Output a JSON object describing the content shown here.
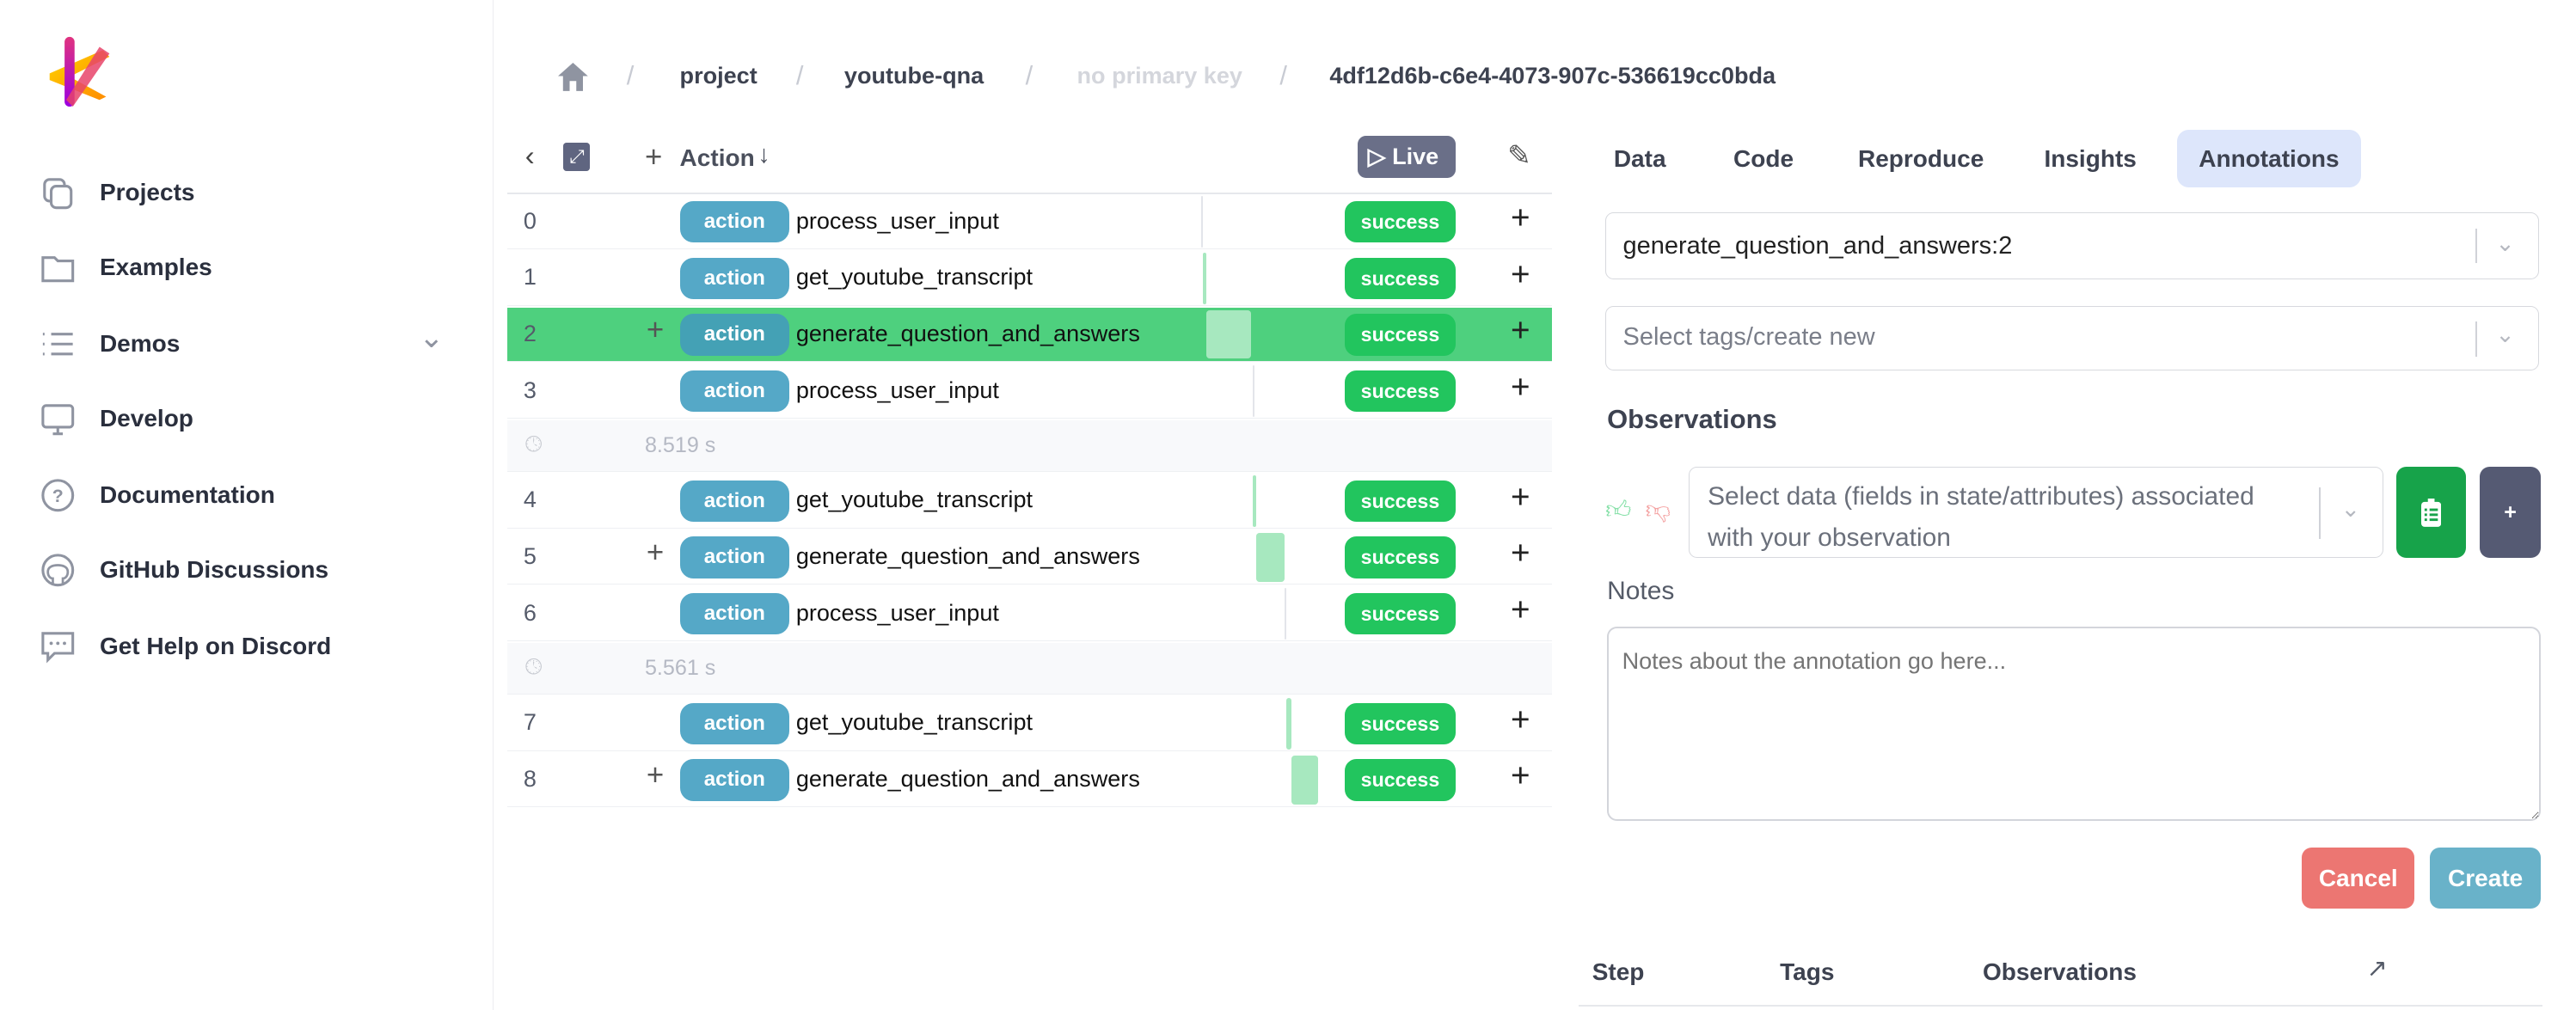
{
  "sidebar": {
    "items": [
      {
        "label": "Projects",
        "icon": "projects-icon"
      },
      {
        "label": "Examples",
        "icon": "folder-icon"
      },
      {
        "label": "Demos",
        "icon": "list-icon"
      },
      {
        "label": "Develop",
        "icon": "monitor-icon"
      },
      {
        "label": "Documentation",
        "icon": "question-icon"
      },
      {
        "label": "GitHub Discussions",
        "icon": "github-icon"
      },
      {
        "label": "Get Help on Discord",
        "icon": "chat-icon"
      }
    ]
  },
  "breadcrumb": {
    "items": [
      "project",
      "youtube-qna",
      "no primary key",
      "4df12d6b-c6e4-4073-907c-536619cc0bda"
    ]
  },
  "trace": {
    "header": {
      "column": "Action",
      "live": "Live"
    },
    "rows": [
      {
        "type": "row",
        "index": "0",
        "has_plus": false,
        "badge": "action",
        "name": "process_user_input",
        "status": "success"
      },
      {
        "type": "row",
        "index": "1",
        "has_plus": false,
        "badge": "action",
        "name": "get_youtube_transcript",
        "status": "success"
      },
      {
        "type": "row",
        "index": "2",
        "has_plus": true,
        "badge": "action",
        "name": "generate_question_and_answers",
        "status": "success",
        "selected": true
      },
      {
        "type": "row",
        "index": "3",
        "has_plus": false,
        "badge": "action",
        "name": "process_user_input",
        "status": "success"
      },
      {
        "type": "gap",
        "duration": "8.519 s"
      },
      {
        "type": "row",
        "index": "4",
        "has_plus": false,
        "badge": "action",
        "name": "get_youtube_transcript",
        "status": "success"
      },
      {
        "type": "row",
        "index": "5",
        "has_plus": true,
        "badge": "action",
        "name": "generate_question_and_answers",
        "status": "success"
      },
      {
        "type": "row",
        "index": "6",
        "has_plus": false,
        "badge": "action",
        "name": "process_user_input",
        "status": "success"
      },
      {
        "type": "gap",
        "duration": "5.561 s"
      },
      {
        "type": "row",
        "index": "7",
        "has_plus": false,
        "badge": "action",
        "name": "get_youtube_transcript",
        "status": "success"
      },
      {
        "type": "row",
        "index": "8",
        "has_plus": true,
        "badge": "action",
        "name": "generate_question_and_answers",
        "status": "success"
      }
    ]
  },
  "tabs": [
    {
      "label": "Data"
    },
    {
      "label": "Code"
    },
    {
      "label": "Reproduce"
    },
    {
      "label": "Insights"
    },
    {
      "label": "Annotations",
      "active": true
    }
  ],
  "annotation": {
    "step_select": "generate_question_and_answers:2",
    "tags_placeholder": "Select tags/create new",
    "observations_heading": "Observations",
    "observation_placeholder": "Select data (fields in state/attributes) associated with your observation",
    "add_label": "+",
    "notes_label": "Notes",
    "notes_placeholder": "Notes about the annotation go here...",
    "cancel": "Cancel",
    "create": "Create",
    "table_headers": [
      "Step",
      "Tags",
      "Observations"
    ]
  },
  "colors": {
    "action_badge": "#55a8c7",
    "success": "#22c55e",
    "selected_row": "#4ed07e",
    "cancel": "#ec7672",
    "create": "#69b2c9",
    "active_tab": "#dde6fb"
  }
}
